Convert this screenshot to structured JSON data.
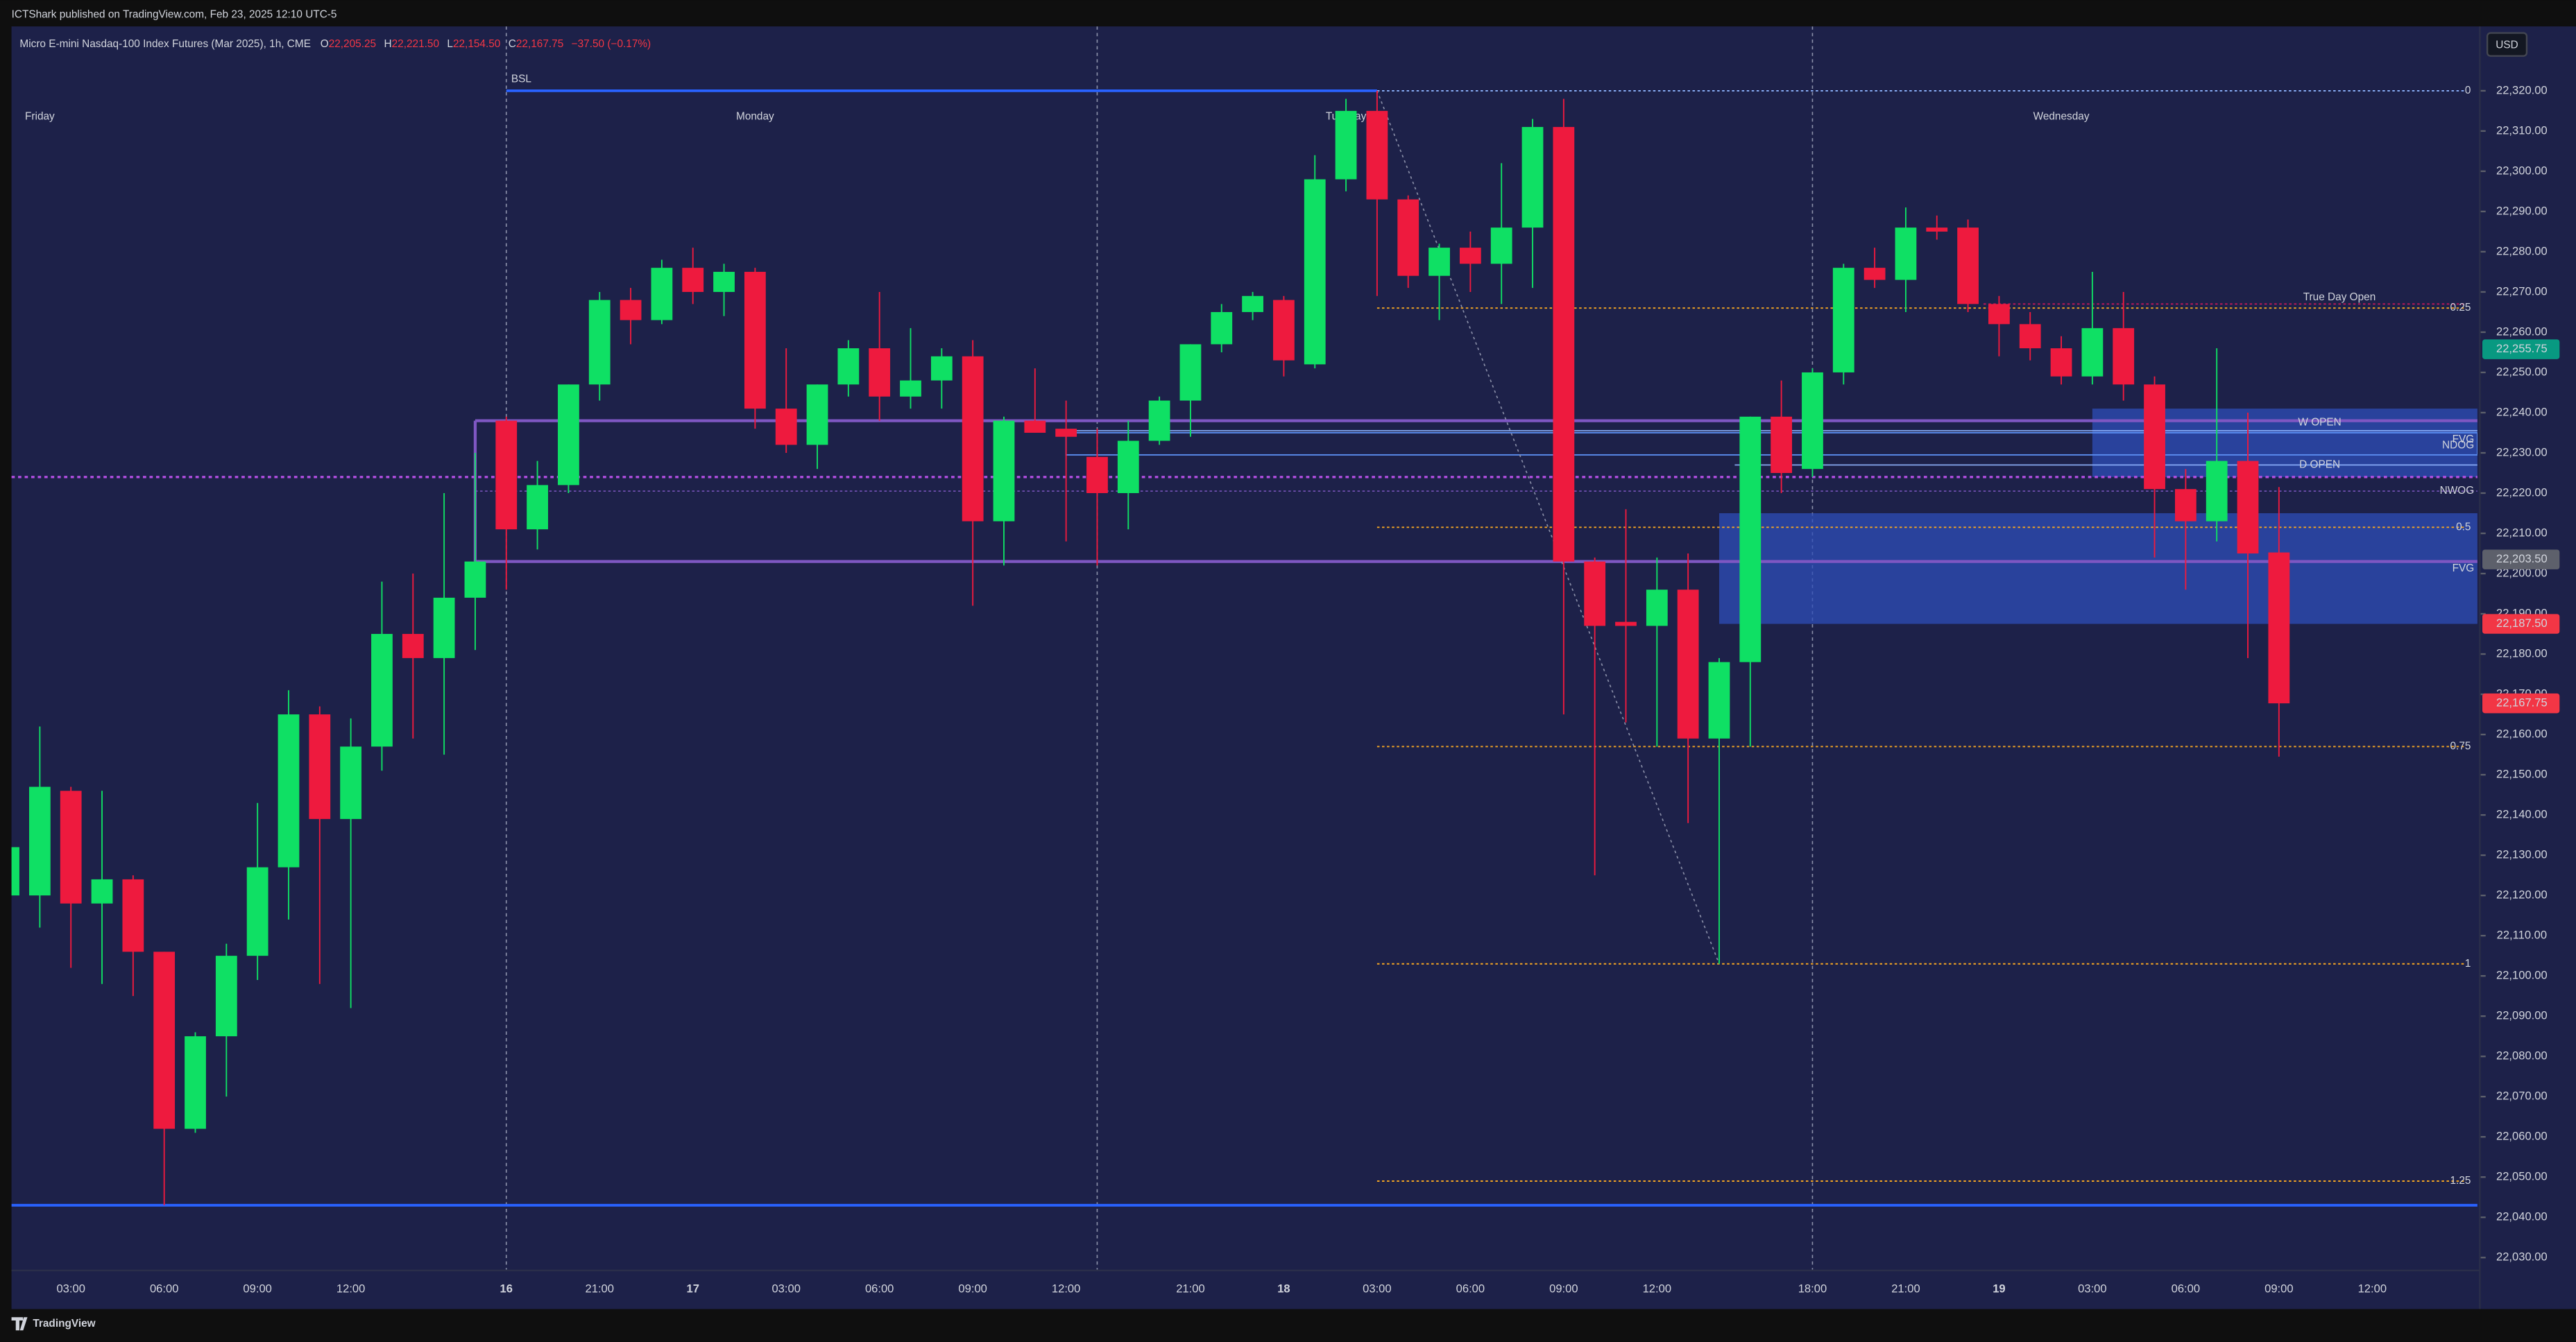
{
  "header": {
    "publisher": "ICTShark published on TradingView.com, Feb 23, 2025 12:10 UTC-5",
    "symbol": "Micro E-mini Nasdaq-100 Index Futures (Mar 2025), 1h, CME",
    "ohlc": [
      {
        "key": "O",
        "value": "22,205.25"
      },
      {
        "key": "H",
        "value": "22,221.50"
      },
      {
        "key": "L",
        "value": "22,154.50"
      },
      {
        "key": "C",
        "value": "22,167.75"
      }
    ],
    "change": "−37.50 (−0.17%)"
  },
  "currency": "USD",
  "footer": "TradingView",
  "chart_data": {
    "type": "candlestick",
    "up_color": "#0fe064",
    "down_color": "#ee1a3e",
    "background": "#1d2149",
    "categories": [
      null,
      null,
      "03:00",
      null,
      null,
      "06:00",
      null,
      null,
      "09:00",
      null,
      null,
      "12:00",
      null,
      null,
      null,
      null,
      "16",
      null,
      null,
      "21:00",
      null,
      null,
      "17",
      null,
      null,
      "03:00",
      null,
      null,
      "06:00",
      null,
      null,
      "09:00",
      null,
      null,
      "12:00",
      null,
      null,
      null,
      "21:00",
      null,
      null,
      "18",
      null,
      null,
      "03:00",
      null,
      null,
      "06:00",
      null,
      null,
      "09:00",
      null,
      null,
      "12:00",
      null,
      null,
      null,
      null,
      "18:00",
      null,
      null,
      "21:00",
      null,
      null,
      "19",
      null,
      null,
      "03:00",
      null,
      null,
      "06:00",
      null,
      null,
      "09:00",
      null,
      null,
      "12:00",
      null,
      null,
      null
    ],
    "day_labels": [
      null,
      "Friday",
      null,
      null,
      null,
      null,
      null,
      null,
      null,
      null,
      null,
      null,
      null,
      null,
      null,
      null,
      null,
      null,
      null,
      null,
      null,
      null,
      null,
      null,
      "Monday",
      null,
      null,
      null,
      null,
      null,
      null,
      null,
      null,
      null,
      null,
      null,
      null,
      null,
      null,
      null,
      null,
      null,
      null,
      "Tuesday",
      null,
      null,
      null,
      null,
      null,
      null,
      null,
      null,
      null,
      null,
      null,
      null,
      null,
      null,
      null,
      null,
      null,
      null,
      null,
      null,
      null,
      null,
      "Wednesday",
      null,
      null,
      null,
      null,
      null,
      null,
      null,
      null,
      null,
      null,
      null,
      null,
      null
    ],
    "open": [
      22120,
      22120,
      22146,
      22118,
      22124,
      22106,
      22062,
      22085,
      22105,
      22127,
      22165,
      22139,
      22157,
      22185,
      22179,
      22194,
      22238,
      22211,
      22222,
      22247,
      22268,
      22263,
      22276,
      22270,
      22275,
      22241,
      22232,
      22247,
      22256,
      22244,
      22248,
      22254,
      22213,
      22238,
      22236,
      22229,
      22220,
      22233,
      22243,
      22257,
      22265,
      22268,
      22252,
      22298,
      22315,
      22293,
      22274,
      22281,
      22277,
      22286,
      22311,
      22203,
      22188,
      22187,
      22196,
      22159,
      22178,
      22239,
      22226,
      22250,
      22276,
      22273,
      22286,
      22286,
      22267,
      22262,
      22256,
      22249,
      22261,
      22247,
      22221,
      22213,
      22228,
      22205.25,
      null,
      null,
      null,
      null,
      null,
      null
    ],
    "high": [
      22134,
      22162,
      22147,
      22146,
      22125,
      22106,
      22086,
      22108,
      22143,
      22171,
      22167,
      22164,
      22198,
      22200,
      22220,
      22230,
      22239,
      22228,
      22247,
      22270,
      22271,
      22278,
      22281,
      22277,
      22276,
      22256,
      22247,
      22258,
      22270,
      22261,
      22256,
      22258,
      22239,
      22251,
      22243,
      22236,
      22238,
      22244,
      22257,
      22267,
      22270,
      22269,
      22304,
      22318,
      22320,
      22294,
      22282,
      22285,
      22302,
      22313,
      22318,
      22204,
      22216,
      22204,
      22205,
      22179,
      22239,
      22248,
      22251,
      22277,
      22281,
      22291,
      22289,
      22288,
      22269,
      22265,
      22259,
      22275,
      22270,
      22249,
      22226,
      22256,
      22240,
      22221.5,
      null,
      null,
      null,
      null,
      null,
      null
    ],
    "low": [
      22118,
      22112,
      22102,
      22098,
      22095,
      22043,
      22061,
      22070,
      22099,
      22114,
      22098,
      22092,
      22151,
      22159,
      22155,
      22181,
      22196,
      22206,
      22220,
      22243,
      22257,
      22262,
      22267,
      22264,
      22236,
      22230,
      22226,
      22244,
      22238,
      22241,
      22241,
      22192,
      22202,
      22235,
      22208,
      22202,
      22211,
      22232,
      22234,
      22255,
      22263,
      22249,
      22251,
      22295,
      22269,
      22271,
      22263,
      22270,
      22267,
      22271,
      22165,
      22125,
      22163,
      22157,
      22138,
      22103,
      22157,
      22220,
      22224,
      22247,
      22271,
      22265,
      22283,
      22265,
      22254,
      22253,
      22247,
      22247,
      22243,
      22204,
      22196,
      22208,
      22179,
      22154.5,
      null,
      null,
      null,
      null,
      null,
      null
    ],
    "close": [
      22132,
      22147,
      22118,
      22124,
      22106,
      22062,
      22085,
      22105,
      22127,
      22165,
      22139,
      22157,
      22185,
      22179,
      22194,
      22203,
      22211,
      22222,
      22247,
      22268,
      22263,
      22276,
      22270,
      22275,
      22241,
      22232,
      22247,
      22256,
      22244,
      22248,
      22254,
      22213,
      22238,
      22235,
      22234,
      22220,
      22233,
      22243,
      22257,
      22265,
      22269,
      22253,
      22298,
      22315,
      22293,
      22274,
      22281,
      22277,
      22286,
      22311,
      22203,
      22187,
      22187,
      22196,
      22159,
      22178,
      22239,
      22225,
      22250,
      22276,
      22273,
      22286,
      22285,
      22267,
      22262,
      22256,
      22249,
      22261,
      22247,
      22221,
      22213,
      22228,
      22205,
      22167.75,
      null,
      null,
      null,
      null,
      null,
      null
    ],
    "ylim": [
      22027,
      22336
    ],
    "yticks": [
      {
        "value": 22030,
        "label": "22,030.00"
      },
      {
        "value": 22040,
        "label": "22,040.00"
      },
      {
        "value": 22050,
        "label": "22,050.00"
      },
      {
        "value": 22060,
        "label": "22,060.00"
      },
      {
        "value": 22070,
        "label": "22,070.00"
      },
      {
        "value": 22080,
        "label": "22,080.00"
      },
      {
        "value": 22090,
        "label": "22,090.00"
      },
      {
        "value": 22100,
        "label": "22,100.00"
      },
      {
        "value": 22110,
        "label": "22,110.00"
      },
      {
        "value": 22120,
        "label": "22,120.00"
      },
      {
        "value": 22130,
        "label": "22,130.00"
      },
      {
        "value": 22140,
        "label": "22,140.00"
      },
      {
        "value": 22150,
        "label": "22,150.00"
      },
      {
        "value": 22160,
        "label": "22,160.00"
      },
      {
        "value": 22170,
        "label": "22,170.00"
      },
      {
        "value": 22180,
        "label": "22,180.00"
      },
      {
        "value": 22190,
        "label": "22,190.00"
      },
      {
        "value": 22200,
        "label": "22,200.00"
      },
      {
        "value": 22210,
        "label": "22,210.00"
      },
      {
        "value": 22220,
        "label": "22,220.00"
      },
      {
        "value": 22230,
        "label": "22,230.00"
      },
      {
        "value": 22240,
        "label": "22,240.00"
      },
      {
        "value": 22250,
        "label": "22,250.00"
      },
      {
        "value": 22260,
        "label": "22,260.00"
      },
      {
        "value": 22270,
        "label": "22,270.00"
      },
      {
        "value": 22280,
        "label": "22,280.00"
      },
      {
        "value": 22290,
        "label": "22,290.00"
      },
      {
        "value": 22300,
        "label": "22,300.00"
      },
      {
        "value": 22310,
        "label": "22,310.00"
      },
      {
        "value": 22320,
        "label": "22,320.00"
      }
    ],
    "price_labels": [
      {
        "value": 22255.75,
        "label": "22,255.75",
        "color": "#089981"
      },
      {
        "value": 22203.5,
        "label": "22,203.50",
        "color": "#5d606b"
      },
      {
        "value": 22187.5,
        "label": "22,187.50",
        "color": "#f23645"
      },
      {
        "value": 22167.75,
        "label": "22,167.75",
        "color": "#f23645"
      }
    ],
    "annotations": {
      "bsl": {
        "label": "BSL",
        "value": 22320,
        "color": "#2962ff"
      },
      "low_line": {
        "value": 22043,
        "color": "#2962ff"
      },
      "purple_dotted": {
        "value": 22224,
        "color": "#b04de0"
      },
      "nwog": {
        "label": "NWOG",
        "low": 22203,
        "high": 22238,
        "mid": 22220.5,
        "color": "#7e57c2"
      },
      "ndog": {
        "label": "NDOG",
        "low": 22229.5,
        "high": 22235,
        "color": "#5b8def"
      },
      "fvg": [
        {
          "label": "FVG",
          "low": 22187.5,
          "high": 22215,
          "color": "#2d4db8"
        },
        {
          "label": "FVG",
          "low": 22224,
          "high": 22241,
          "color": "#2d4db8"
        }
      ],
      "w_open": {
        "label": "W OPEN",
        "value": 22235.5
      },
      "d_open": {
        "label": "D OPEN",
        "value": 22227
      },
      "true_day_open": {
        "label": "True Day Open",
        "value": 22267,
        "color": "#c2185b"
      },
      "fib": {
        "color": "#f5a623",
        "levels": [
          {
            "label": "0",
            "value": 22320
          },
          {
            "label": "0.25",
            "value": 22266
          },
          {
            "label": "0.5",
            "value": 22211.5
          },
          {
            "label": "0.75",
            "value": 22157
          },
          {
            "label": "1",
            "value": 22103
          },
          {
            "label": "1.25",
            "value": 22049
          }
        ]
      }
    }
  }
}
